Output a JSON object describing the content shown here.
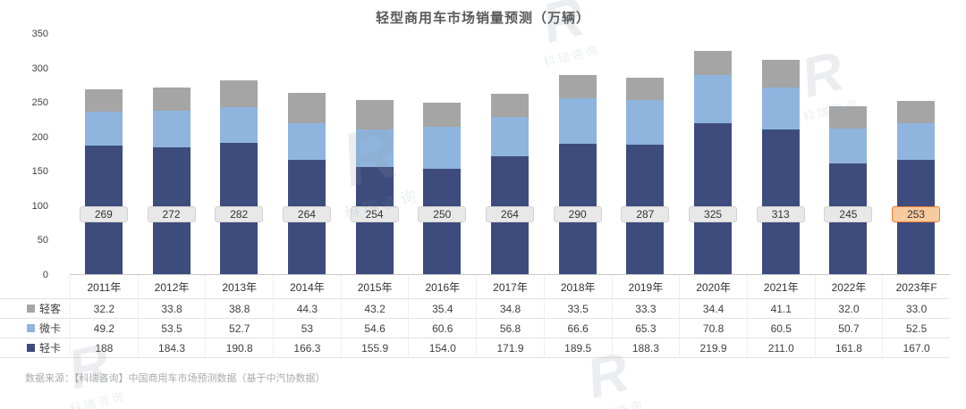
{
  "title": "轻型商用车市场销量预测（万辆）",
  "source": "数据来源：【科瑞咨询】中国商用车市场预测数据（基于中汽协数据）",
  "watermark": {
    "logo": "R",
    "text": "科瑞咨询"
  },
  "chart_data": {
    "type": "bar",
    "stacked": true,
    "title": "轻型商用车市场销量预测（万辆）",
    "ylim": [
      0,
      350
    ],
    "yticks": [
      0,
      50,
      100,
      150,
      200,
      250,
      300,
      350
    ],
    "grid": false,
    "legend_position": "table-left",
    "categories": [
      "2011年",
      "2012年",
      "2013年",
      "2014年",
      "2015年",
      "2016年",
      "2017年",
      "2018年",
      "2019年",
      "2020年",
      "2021年",
      "2022年",
      "2023年F"
    ],
    "series": [
      {
        "name": "轻客",
        "key": "light-bus",
        "color": "#a5a5a5",
        "values": [
          "32.2",
          "33.8",
          "38.8",
          "44.3",
          "43.2",
          "35.4",
          "34.8",
          "33.5",
          "33.3",
          "34.4",
          "41.1",
          "32.0",
          "33.0"
        ]
      },
      {
        "name": "微卡",
        "key": "micro-truck",
        "color": "#8fb5df",
        "values": [
          "49.2",
          "53.5",
          "52.7",
          "53",
          "54.6",
          "60.6",
          "56.8",
          "66.6",
          "65.3",
          "70.8",
          "60.5",
          "50.7",
          "52.5"
        ]
      },
      {
        "name": "轻卡",
        "key": "light-truck",
        "color": "#3d4c7d",
        "values": [
          "188",
          "184.3",
          "190.8",
          "166.3",
          "155.9",
          "154.0",
          "171.9",
          "189.5",
          "188.3",
          "219.9",
          "211.0",
          "161.8",
          "167.0"
        ]
      }
    ],
    "stack_order_bottom_to_top": [
      "轻卡",
      "微卡",
      "轻客"
    ],
    "totals": [
      "269",
      "272",
      "282",
      "264",
      "254",
      "250",
      "264",
      "290",
      "287",
      "325",
      "313",
      "245",
      "253"
    ],
    "highlight": {
      "category": "2023年F",
      "color": "#ed7d31"
    }
  }
}
